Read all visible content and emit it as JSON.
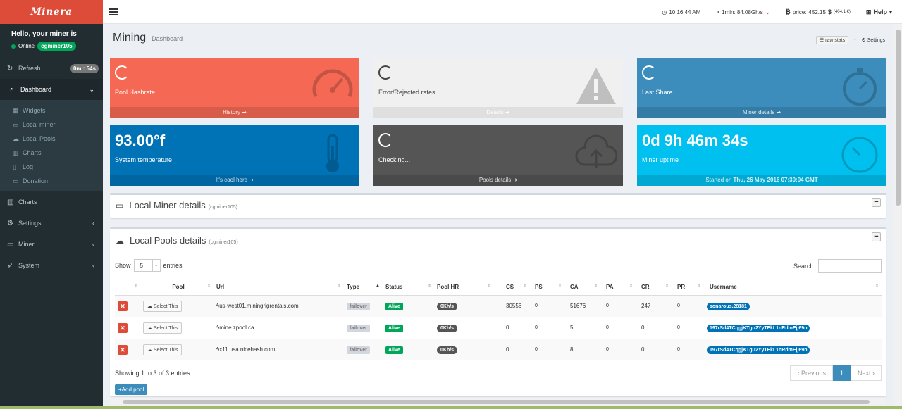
{
  "sidebar": {
    "logo": "Minera",
    "hello": "Hello, your miner is",
    "status": "Online",
    "miner_name": "cgminer105",
    "refresh": {
      "label": "Refresh",
      "badge": "0m : 54s"
    },
    "dashboard": "Dashboard",
    "sub_items": [
      "Widgets",
      "Local miner",
      "Local Pools",
      "Charts",
      "Log",
      "Donation"
    ],
    "charts": "Charts",
    "settings": "Settings",
    "miner": "Miner",
    "system": "System"
  },
  "header": {
    "time": "10:16:44 AM",
    "hashrate": "1min: 84.08Gh/s",
    "price_label": "price:",
    "price_value": "452.15",
    "price_currency": "$",
    "price_eur": "(404.1 €)",
    "help": "Help"
  },
  "page": {
    "title": "Mining",
    "subtitle": "Dashboard",
    "raw_stats": "raw stats",
    "settings": "Settings"
  },
  "boxes": [
    {
      "label": "Pool Hashrate",
      "footer": "History",
      "color": "#f56954"
    },
    {
      "label": "Error/Rejected rates",
      "footer": "Details",
      "color": "#f0f0f0"
    },
    {
      "label": "Last Share",
      "footer": "Miner details",
      "color": "#3c8dbc"
    },
    {
      "value": "93.00°f",
      "label": "System temperature",
      "footer": "It's cool here",
      "color": "#0073b7"
    },
    {
      "label": "Checking...",
      "footer": "Pools details",
      "color": "#555555"
    },
    {
      "value": "0d 9h 46m 34s",
      "label": "Miner uptime",
      "footer_prefix": "Started on",
      "footer_date": "Thu, 26 May 2016 07:30:04 GMT",
      "color": "#00c0ef"
    }
  ],
  "local_miner": {
    "title": "Local Miner details",
    "miner": "(cgminer105)"
  },
  "local_pools": {
    "title": "Local Pools details",
    "miner": "(cgminer105)",
    "show": "Show",
    "entries_value": "5",
    "entries": "entries",
    "search": "Search:",
    "columns": [
      "Pool",
      "Url",
      "Type",
      "Status",
      "Pool HR",
      "CS",
      "PS",
      "CA",
      "PA",
      "CR",
      "PR",
      "Username"
    ],
    "rows": [
      {
        "select": "Select This",
        "url": "us-west01.miningrigrentals.com",
        "type": "failover",
        "status": "Alive",
        "hr": "0Kh/s",
        "cs": "30556",
        "ps": "0",
        "ca": "51676",
        "pa": "0",
        "cr": "247",
        "pr": "0",
        "username": "sonarous.28181"
      },
      {
        "select": "Select This",
        "url": "mine.zpool.ca",
        "type": "failover",
        "status": "Alive",
        "hr": "0Kh/s",
        "cs": "0",
        "ps": "0",
        "ca": "5",
        "pa": "0",
        "cr": "0",
        "pr": "0",
        "username": "197rSd4TCqgjKTgu2YyTFkL1nRdmEjj69n"
      },
      {
        "select": "Select This",
        "url": "x11.usa.nicehash.com",
        "type": "failover",
        "status": "Alive",
        "hr": "0Kh/s",
        "cs": "0",
        "ps": "0",
        "ca": "8",
        "pa": "0",
        "cr": "0",
        "pr": "0",
        "username": "197rSd4TCqgjKTgu2YyTFkL1nRdmEjj69n"
      }
    ],
    "showing": "Showing 1 to 3 of 3 entries",
    "previous": "Previous",
    "page": "1",
    "next": "Next",
    "add_pool": "Add pool"
  }
}
